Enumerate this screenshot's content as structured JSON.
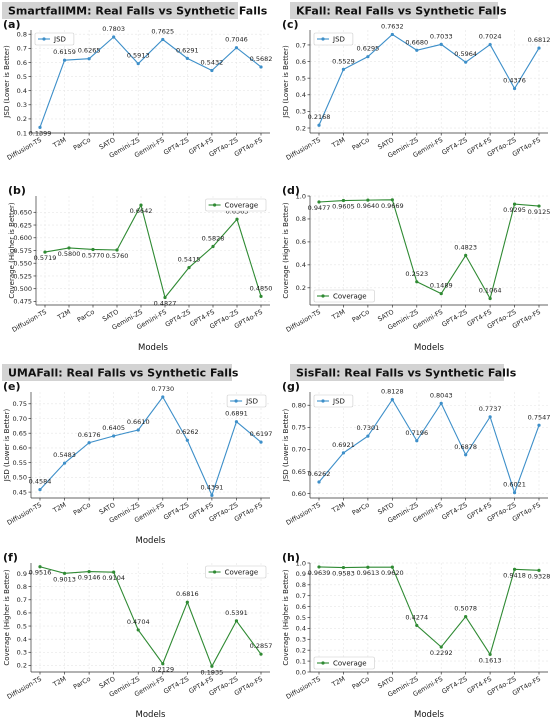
{
  "colors": {
    "jsd": "#3d8fc9",
    "coverage": "#2f8a33",
    "title_box": "#d3d3d3"
  },
  "section_titles": [
    "SmartfallMM: Real Falls vs Synthetic Falls",
    "KFall: Real Falls vs Synthetic Falls",
    "UMAFall: Real Falls vs Synthetic Falls",
    "SisFall: Real Falls vs Synthetic Falls"
  ],
  "chart_data": [
    {
      "id": "a",
      "panel_label": "(a)",
      "type": "line",
      "categories": [
        "Diffusion-TS",
        "T2M",
        "ParCo",
        "SATO",
        "Gemini-ZS",
        "Gemini-FS",
        "GPT4-ZS",
        "GPT4-FS",
        "GPT4o-ZS",
        "GPT4o-FS"
      ],
      "series": [
        {
          "name": "JSD",
          "values": [
            0.1399,
            0.6159,
            0.6265,
            0.7803,
            0.5913,
            0.7625,
            0.6291,
            0.5432,
            0.7046,
            0.5682
          ],
          "labels": [
            "0.1399",
            "0.6159",
            "0.6265",
            "0.7803",
            "0.5913",
            "0.7625",
            "0.6291",
            "0.5432",
            "0.7046",
            "0.5682"
          ]
        }
      ],
      "ylabel": "JSD (Lower is Better)",
      "xlabel": "",
      "ylim": [
        0.1,
        0.83
      ],
      "yticks": [
        0.1,
        0.2,
        0.3,
        0.4,
        0.5,
        0.6,
        0.7,
        0.8
      ],
      "ytick_labels": [
        "0.1",
        "0.2",
        "0.3",
        "0.4",
        "0.5",
        "0.6",
        "0.7",
        "0.8"
      ],
      "legend": "top-left",
      "grid": true,
      "color_key": "jsd",
      "label_offsets": [
        8,
        -6,
        -6,
        -6,
        -6,
        -6,
        -6,
        -6,
        -6,
        -6
      ]
    },
    {
      "id": "c",
      "panel_label": "(c)",
      "type": "line",
      "categories": [
        "Diffusion-TS",
        "T2M",
        "ParCo",
        "SATO",
        "Gemini-ZS",
        "Gemini-FS",
        "GPT4-ZS",
        "GPT4-FS",
        "GPT4o-ZS",
        "GPT4o-FS"
      ],
      "series": [
        {
          "name": "JSD",
          "values": [
            0.2168,
            0.5529,
            0.6295,
            0.7632,
            0.668,
            0.7033,
            0.5964,
            0.7024,
            0.4376,
            0.6812
          ],
          "labels": [
            "0.2168",
            "0.5529",
            "0.6295",
            "0.7632",
            "0.6680",
            "0.7033",
            "0.5964",
            "0.7024",
            "0.4376",
            "0.6812"
          ]
        }
      ],
      "ylabel": "JSD (Lower is Better)",
      "xlabel": "",
      "ylim": [
        0.17,
        0.79
      ],
      "yticks": [
        0.2,
        0.3,
        0.4,
        0.5,
        0.6,
        0.7
      ],
      "ytick_labels": [
        "0.2",
        "0.3",
        "0.4",
        "0.5",
        "0.6",
        "0.7"
      ],
      "legend": "top-left",
      "grid": true,
      "color_key": "jsd",
      "label_offsets": [
        -6,
        -6,
        -6,
        -6,
        -6,
        -6,
        -6,
        -6,
        -6,
        -6
      ]
    },
    {
      "id": "b",
      "panel_label": "(b)",
      "type": "line",
      "categories": [
        "Diffusion-TS",
        "T2M",
        "ParCo",
        "SATO",
        "Gemini-ZS",
        "Gemini-FS",
        "GPT4-ZS",
        "GPT4-FS",
        "GPT4o-ZS",
        "GPT4o-FS"
      ],
      "series": [
        {
          "name": "Coverage",
          "values": [
            0.5719,
            0.58,
            0.577,
            0.576,
            0.6642,
            0.4827,
            0.5415,
            0.5828,
            0.6363,
            0.485
          ],
          "labels": [
            "0.5719",
            "0.5800",
            "0.5770",
            "0.5760",
            "0.6642",
            "0.4827",
            "0.5415",
            "0.5828",
            "0.6363",
            "0.4850"
          ]
        }
      ],
      "ylabel": "Coverage (Higher is Better)",
      "xlabel": "Models",
      "ylim": [
        0.468,
        0.682
      ],
      "yticks": [
        0.475,
        0.5,
        0.525,
        0.55,
        0.575,
        0.6,
        0.625,
        0.65
      ],
      "ytick_labels": [
        "0.475",
        "0.500",
        "0.525",
        "0.550",
        "0.575",
        "0.600",
        "0.625",
        "0.650"
      ],
      "legend": "top-right",
      "grid": true,
      "color_key": "coverage",
      "label_offsets": [
        8,
        8,
        8,
        8,
        8,
        8,
        -6,
        -6,
        -6,
        -6
      ]
    },
    {
      "id": "d",
      "panel_label": "(d)",
      "type": "line",
      "categories": [
        "Diffusion-TS",
        "T2M",
        "ParCo",
        "SATO",
        "Gemini-ZS",
        "Gemini-FS",
        "GPT4-ZS",
        "GPT4-FS",
        "GPT4o-ZS",
        "GPT4o-FS"
      ],
      "series": [
        {
          "name": "Coverage",
          "values": [
            0.9477,
            0.9605,
            0.964,
            0.9669,
            0.2523,
            0.1489,
            0.4823,
            0.1064,
            0.9295,
            0.9125
          ],
          "labels": [
            "0.9477",
            "0.9605",
            "0.9640",
            "0.9669",
            "0.2523",
            "0.1489",
            "0.4823",
            "0.1064",
            "0.9295",
            "0.9125"
          ]
        }
      ],
      "ylabel": "Coverage (Higher is Better)",
      "xlabel": "Models",
      "ylim": [
        0.05,
        1.0
      ],
      "yticks": [
        0.2,
        0.4,
        0.6,
        0.8,
        1.0
      ],
      "ytick_labels": [
        "0.2",
        "0.4",
        "0.6",
        "0.8",
        "1.0"
      ],
      "legend": "bottom-left",
      "grid": true,
      "color_key": "coverage",
      "label_offsets": [
        8,
        8,
        8,
        8,
        -6,
        -6,
        -6,
        -6,
        8,
        8
      ]
    },
    {
      "id": "e",
      "panel_label": "(e)",
      "type": "line",
      "categories": [
        "Diffusion-TS",
        "T2M",
        "ParCo",
        "SATO",
        "Gemini-ZS",
        "Gemini-FS",
        "GPT4-ZS",
        "GPT4-FS",
        "GPT4o-ZS",
        "GPT4o-FS"
      ],
      "series": [
        {
          "name": "JSD",
          "values": [
            0.4584,
            0.5483,
            0.6176,
            0.6405,
            0.661,
            0.773,
            0.6262,
            0.4391,
            0.6891,
            0.6197
          ],
          "labels": [
            "0.4584",
            "0.5483",
            "0.6176",
            "0.6405",
            "0.6610",
            "0.7730",
            "0.6262",
            "0.4391",
            "0.6891",
            "0.6197"
          ]
        }
      ],
      "ylabel": "JSD (Lower is Better)",
      "xlabel": "Models",
      "ylim": [
        0.43,
        0.79
      ],
      "yticks": [
        0.45,
        0.5,
        0.55,
        0.6,
        0.65,
        0.7,
        0.75
      ],
      "ytick_labels": [
        "0.45",
        "0.50",
        "0.55",
        "0.60",
        "0.65",
        "0.70",
        "0.75"
      ],
      "legend": "top-right",
      "grid": true,
      "color_key": "jsd",
      "label_offsets": [
        -6,
        -6,
        -6,
        -6,
        -6,
        -6,
        -6,
        -6,
        -6,
        -6
      ]
    },
    {
      "id": "g",
      "panel_label": "(g)",
      "type": "line",
      "categories": [
        "Diffusion-TS",
        "T2M",
        "ParCo",
        "SATO",
        "Gemini-ZS",
        "Gemini-FS",
        "GPT4-ZS",
        "GPT4-FS",
        "GPT4o-ZS",
        "GPT4o-FS"
      ],
      "series": [
        {
          "name": "JSD",
          "values": [
            0.6262,
            0.6921,
            0.7301,
            0.8128,
            0.7196,
            0.8043,
            0.6878,
            0.7737,
            0.6021,
            0.7547
          ],
          "labels": [
            "0.6262",
            "0.6921",
            "0.7301",
            "0.8128",
            "0.7196",
            "0.8043",
            "0.6878",
            "0.7737",
            "0.6021",
            "0.7547"
          ]
        }
      ],
      "ylabel": "JSD (Lower is Better)",
      "xlabel": "",
      "ylim": [
        0.59,
        0.83
      ],
      "yticks": [
        0.6,
        0.65,
        0.7,
        0.75,
        0.8
      ],
      "ytick_labels": [
        "0.60",
        "0.65",
        "0.70",
        "0.75",
        "0.80"
      ],
      "legend": "top-left",
      "grid": true,
      "color_key": "jsd",
      "label_offsets": [
        -6,
        -6,
        -6,
        -6,
        -6,
        -6,
        -6,
        -6,
        -6,
        -6
      ]
    },
    {
      "id": "f",
      "panel_label": "(f)",
      "type": "line",
      "categories": [
        "Diffusion-TS",
        "T2M",
        "ParCo",
        "SATO",
        "Gemini-ZS",
        "Gemini-FS",
        "GPT4-ZS",
        "GPT4-FS",
        "GPT4o-ZS",
        "GPT4o-FS"
      ],
      "series": [
        {
          "name": "Coverage",
          "values": [
            0.9516,
            0.9013,
            0.9146,
            0.9104,
            0.4704,
            0.2129,
            0.6816,
            0.1935,
            0.5391,
            0.2857
          ],
          "labels": [
            "0.9516",
            "0.9013",
            "0.9146",
            "0.9104",
            "0.4704",
            "0.2129",
            "0.6816",
            "0.1935",
            "0.5391",
            "0.2857"
          ]
        }
      ],
      "ylabel": "Coverage (Higher is Better)",
      "xlabel": "Models",
      "ylim": [
        0.15,
        0.98
      ],
      "yticks": [
        0.2,
        0.3,
        0.4,
        0.5,
        0.6,
        0.7,
        0.8,
        0.9
      ],
      "ytick_labels": [
        "0.2",
        "0.3",
        "0.4",
        "0.5",
        "0.6",
        "0.7",
        "0.8",
        "0.9"
      ],
      "legend": "top-right",
      "grid": true,
      "color_key": "coverage",
      "label_offsets": [
        8,
        8,
        8,
        8,
        -6,
        8,
        -6,
        8,
        -6,
        -6
      ]
    },
    {
      "id": "h",
      "panel_label": "(h)",
      "type": "line",
      "categories": [
        "Diffusion-TS",
        "T2M",
        "ParCo",
        "SATO",
        "Gemini-ZS",
        "Gemini-FS",
        "GPT4-ZS",
        "GPT4-FS",
        "GPT4o-ZS",
        "GPT4o-FS"
      ],
      "series": [
        {
          "name": "Coverage",
          "values": [
            0.9639,
            0.9583,
            0.9613,
            0.962,
            0.4274,
            0.2292,
            0.5078,
            0.1613,
            0.9418,
            0.9328
          ],
          "labels": [
            "0.9639",
            "0.9583",
            "0.9613",
            "0.9620",
            "0.4274",
            "0.2292",
            "0.5078",
            "0.1613",
            "0.9418",
            "0.9328"
          ]
        }
      ],
      "ylabel": "Coverage (Higher is Better)",
      "xlabel": "Models",
      "ylim": [
        0.0,
        1.0
      ],
      "yticks": [
        0.0,
        0.1,
        0.2,
        0.3,
        0.4,
        0.5,
        0.6,
        0.7,
        0.8,
        0.9,
        1.0
      ],
      "ytick_labels": [
        "0.0",
        "0.1",
        "0.2",
        "0.3",
        "0.4",
        "0.5",
        "0.6",
        "0.7",
        "0.8",
        "0.9",
        "1.0"
      ],
      "legend": "bottom-left",
      "grid": true,
      "color_key": "coverage",
      "label_offsets": [
        8,
        8,
        8,
        8,
        -6,
        8,
        -6,
        8,
        8,
        8
      ]
    }
  ]
}
